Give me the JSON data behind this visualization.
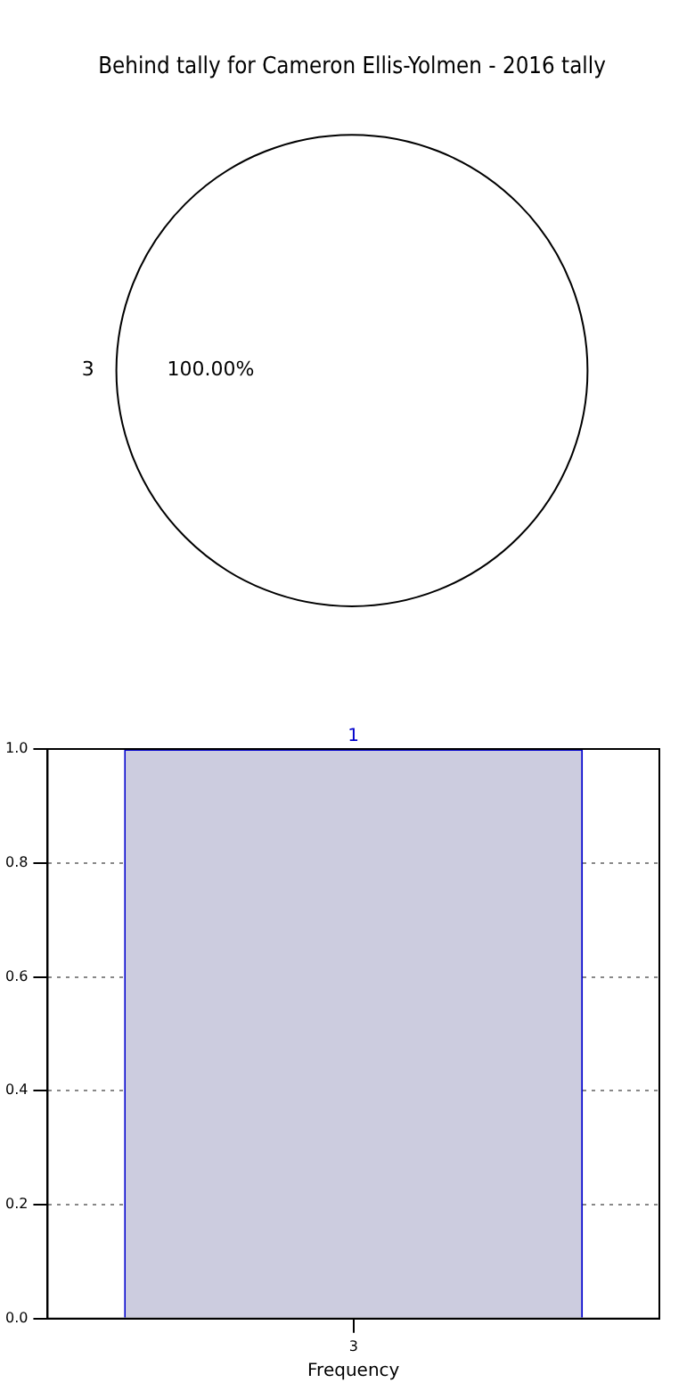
{
  "chart_data": [
    {
      "type": "pie",
      "title": "Behind tally for Cameron Ellis-Yolmen - 2016 tally",
      "categories": [
        "3"
      ],
      "values": [
        100
      ],
      "colors": [
        "#ffffff"
      ],
      "value_labels": [
        "100.00%"
      ],
      "legend": false
    },
    {
      "type": "bar",
      "xlabel": "Frequency",
      "categories": [
        "3"
      ],
      "values": [
        1
      ],
      "color": "#ccccdf",
      "data_labels": true,
      "ylim": [
        0,
        1
      ],
      "yticks": [
        {
          "value": 0,
          "label": "0.0"
        },
        {
          "value": 0.2,
          "label": "0.2"
        },
        {
          "value": 0.4,
          "label": "0.4"
        },
        {
          "value": 0.6,
          "label": "0.6"
        },
        {
          "value": 0.8,
          "label": "0.8"
        },
        {
          "value": 1,
          "label": "1.0"
        }
      ],
      "grid": true,
      "line_style": "dotted",
      "legend": false
    }
  ]
}
